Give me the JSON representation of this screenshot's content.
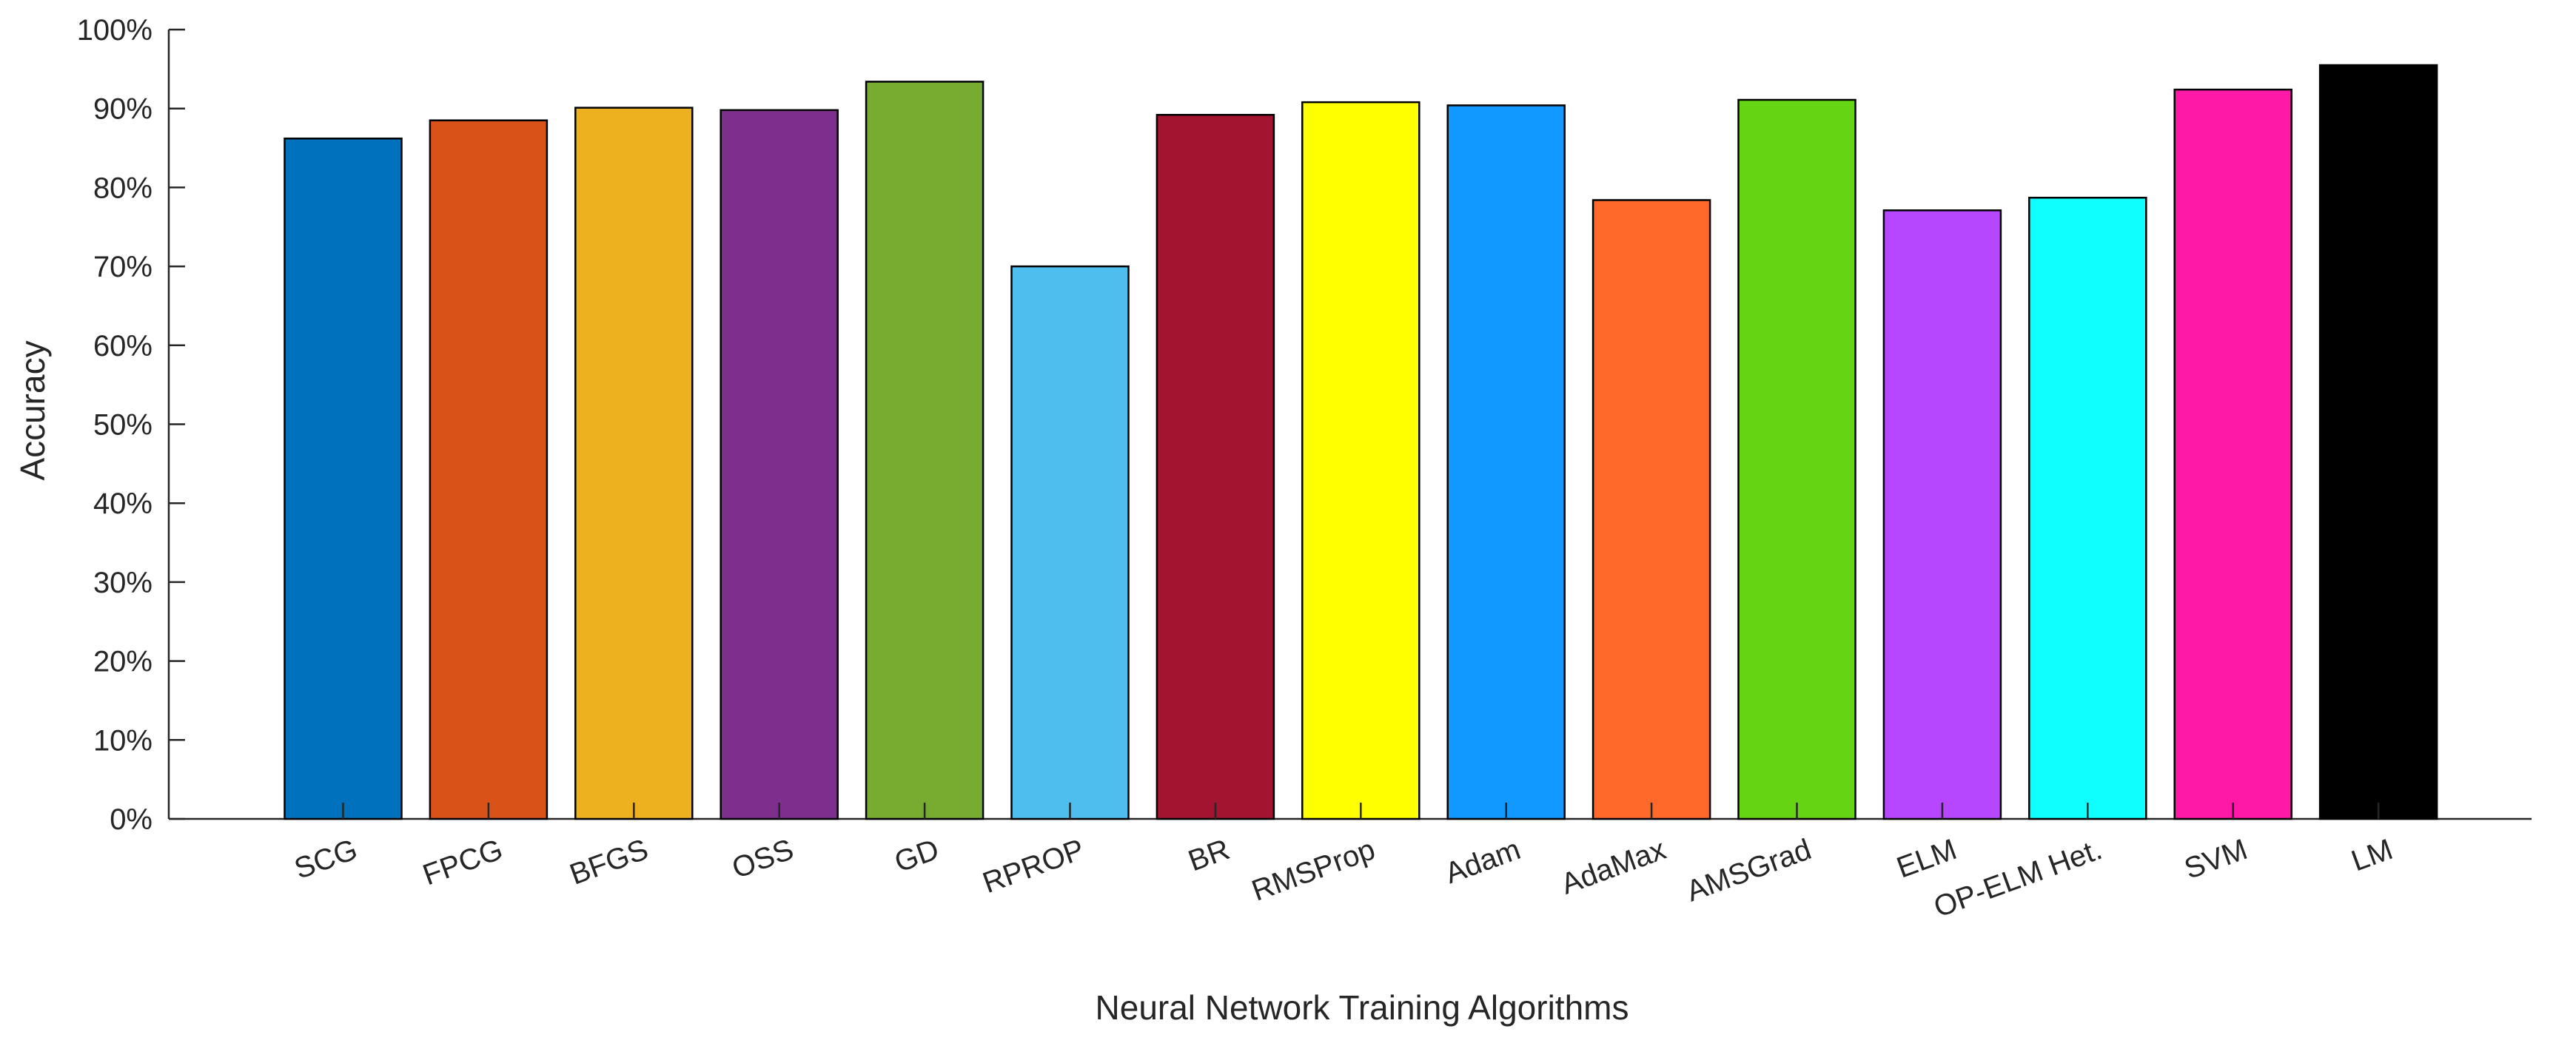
{
  "chart_data": {
    "type": "bar",
    "xlabel": "Neural Network Training Algorithms",
    "ylabel": "Accuracy",
    "ylim": [
      0,
      100
    ],
    "yticks": [
      0,
      10,
      20,
      30,
      40,
      50,
      60,
      70,
      80,
      90,
      100
    ],
    "ytick_labels": [
      "0%",
      "10%",
      "20%",
      "30%",
      "40%",
      "50%",
      "60%",
      "70%",
      "80%",
      "90%",
      "100%"
    ],
    "categories": [
      "SCG",
      "FPCG",
      "BFGS",
      "OSS",
      "GD",
      "RPROP",
      "BR",
      "RMSProp",
      "Adam",
      "AdaMax",
      "AMSGrad",
      "ELM",
      "OP-ELM Het.",
      "SVM",
      "LM"
    ],
    "values": [
      86.2,
      88.5,
      90.1,
      89.8,
      93.4,
      70.0,
      89.2,
      90.8,
      90.4,
      78.4,
      91.1,
      77.1,
      78.7,
      92.4,
      95.5
    ],
    "colors": [
      "#0072BD",
      "#D95319",
      "#EDB120",
      "#7E2F8E",
      "#77AC30",
      "#4DBEEE",
      "#A2142F",
      "#FFFF00",
      "#1199FF",
      "#FF6929",
      "#64D413",
      "#B746FF",
      "#0FFFFF",
      "#FF19A6",
      "#000000"
    ],
    "grid": false,
    "legend": "none"
  }
}
